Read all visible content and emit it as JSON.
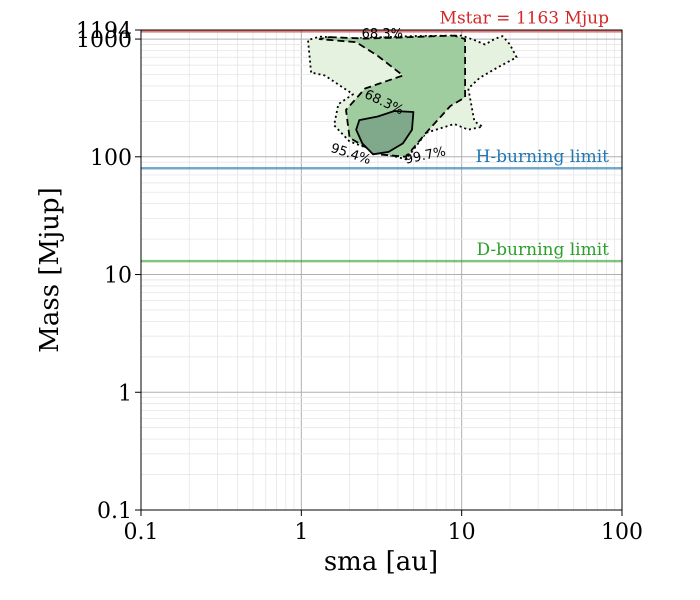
{
  "chart_data": {
    "type": "contour",
    "xlabel": "sma [au]",
    "ylabel": "Mass [Mjup]",
    "x_scale": "log",
    "y_scale": "log",
    "xlim": [
      0.1,
      100
    ],
    "ylim": [
      0.1,
      1194
    ],
    "x_ticks": [
      {
        "value": 0.1,
        "label": "0.1"
      },
      {
        "value": 1,
        "label": "1"
      },
      {
        "value": 10,
        "label": "10"
      },
      {
        "value": 100,
        "label": "100"
      }
    ],
    "y_ticks": [
      {
        "value": 0.1,
        "label": "0.1"
      },
      {
        "value": 1,
        "label": "1"
      },
      {
        "value": 10,
        "label": "10"
      },
      {
        "value": 100,
        "label": "100"
      },
      {
        "value": 1000,
        "label": "1000"
      },
      {
        "value": 1194,
        "label": "1194"
      }
    ],
    "grid": true,
    "reference_lines": [
      {
        "label": "Mstar = 1163 Mjup",
        "y": 1163,
        "color": "#d62728"
      },
      {
        "label": "H-burning limit",
        "y": 80,
        "color": "#1f77b4"
      },
      {
        "label": "D-burning limit",
        "y": 13,
        "color": "#2ca02c"
      }
    ],
    "contours": [
      {
        "level": "99.7%",
        "style": "dotted",
        "fill": "#e4f2df",
        "points": [
          [
            1.15,
            520
          ],
          [
            1.1,
            980
          ],
          [
            1.3,
            1050
          ],
          [
            2,
            1010
          ],
          [
            5,
            1060
          ],
          [
            10,
            1070
          ],
          [
            12,
            980
          ],
          [
            14,
            900
          ],
          [
            16,
            1000
          ],
          [
            18,
            1060
          ],
          [
            20,
            900
          ],
          [
            22,
            700
          ],
          [
            17,
            580
          ],
          [
            13,
            470
          ],
          [
            11,
            380
          ],
          [
            12,
            200
          ],
          [
            13.5,
            180
          ],
          [
            11,
            170
          ],
          [
            9,
            190
          ],
          [
            6,
            160
          ],
          [
            4.5,
            95
          ],
          [
            3,
            110
          ],
          [
            2,
            135
          ],
          [
            1.6,
            185
          ],
          [
            1.7,
            280
          ],
          [
            2.1,
            340
          ],
          [
            1.4,
            490
          ]
        ]
      },
      {
        "level": "95.4%",
        "style": "dashed",
        "fill": "#9fcd9f",
        "points": [
          [
            1.5,
            1040
          ],
          [
            2.5,
            1010
          ],
          [
            4,
            1030
          ],
          [
            7,
            1060
          ],
          [
            9,
            1070
          ],
          [
            10.5,
            1000
          ],
          [
            10.5,
            800
          ],
          [
            10.5,
            500
          ],
          [
            10.5,
            320
          ],
          [
            8.5,
            270
          ],
          [
            6,
            160
          ],
          [
            4.5,
            100
          ],
          [
            3,
            105
          ],
          [
            2,
            145
          ],
          [
            1.9,
            250
          ],
          [
            2.5,
            380
          ],
          [
            4.3,
            490
          ],
          [
            3,
            720
          ],
          [
            2.2,
            940
          ],
          [
            1.3,
            1000
          ]
        ]
      },
      {
        "level": "68.3%",
        "style": "solid",
        "fill": "#7fa98a",
        "points": [
          [
            2.3,
            205
          ],
          [
            3,
            220
          ],
          [
            3.8,
            245
          ],
          [
            5,
            240
          ],
          [
            4.9,
            170
          ],
          [
            4.3,
            130
          ],
          [
            3.5,
            110
          ],
          [
            2.8,
            105
          ],
          [
            2.4,
            130
          ],
          [
            2.2,
            170
          ]
        ]
      }
    ],
    "contour_labels": [
      {
        "text": "68.3%",
        "x": 3.2,
        "y": 1025
      },
      {
        "text": "68.3%",
        "x": 3.2,
        "y": 270
      },
      {
        "text": "95.4%",
        "x": 2.0,
        "y": 98
      },
      {
        "text": "99.7%",
        "x": 6.0,
        "y": 95
      }
    ]
  }
}
